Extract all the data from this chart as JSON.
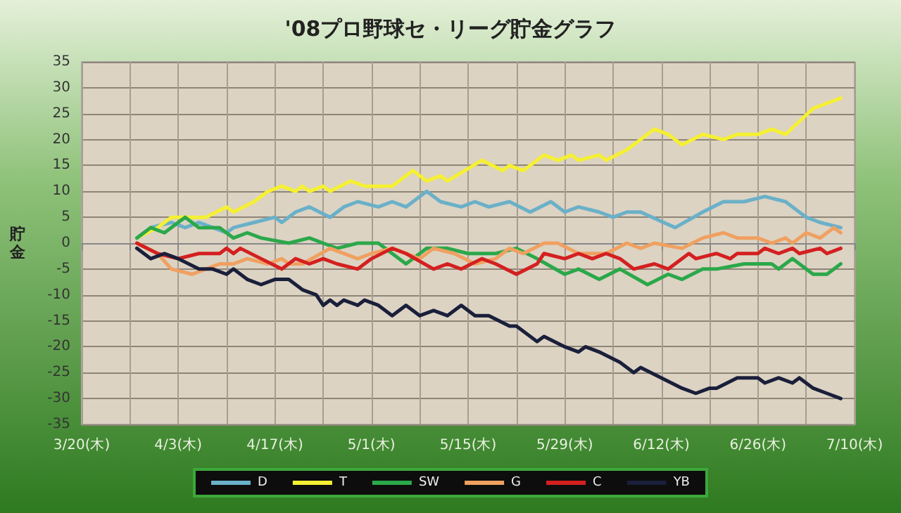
{
  "chart_data": {
    "type": "line",
    "title": "'08プロ野球セ・リーグ貯金グラフ",
    "ylabel": "貯金",
    "xlim": [
      "--03-20",
      "--07-10"
    ],
    "xticks": [
      {
        "value": "--03-20",
        "label": "3/20(木)"
      },
      {
        "value": "--03-27",
        "label": null
      },
      {
        "value": "--04-03",
        "label": "4/3(木)"
      },
      {
        "value": "--04-10",
        "label": null
      },
      {
        "value": "--04-17",
        "label": "4/17(木)"
      },
      {
        "value": "--04-24",
        "label": null
      },
      {
        "value": "--05-01",
        "label": "5/1(木)"
      },
      {
        "value": "--05-08",
        "label": null
      },
      {
        "value": "--05-15",
        "label": "5/15(木)"
      },
      {
        "value": "--05-22",
        "label": null
      },
      {
        "value": "--05-29",
        "label": "5/29(木)"
      },
      {
        "value": "--06-05",
        "label": null
      },
      {
        "value": "--06-12",
        "label": "6/12(木)"
      },
      {
        "value": "--06-19",
        "label": null
      },
      {
        "value": "--06-26",
        "label": "6/26(木)"
      },
      {
        "value": "--07-03",
        "label": null
      },
      {
        "value": "--07-10",
        "label": "7/10(木)"
      }
    ],
    "ylim": [
      -35,
      35
    ],
    "yticks": [
      -35,
      -30,
      -25,
      -20,
      -15,
      -10,
      -5,
      0,
      5,
      10,
      15,
      20,
      25,
      30,
      35
    ],
    "grid": true,
    "legend": "bottom",
    "marker": "none",
    "line_style": "solid",
    "series": [
      {
        "name": "D",
        "color": "#6ab0c8",
        "x": [
          "--03-28",
          "--03-30",
          "--04-02",
          "--04-04",
          "--04-06",
          "--04-08",
          "--04-10",
          "--04-11",
          "--04-14",
          "--04-17",
          "--04-18",
          "--04-20",
          "--04-22",
          "--04-25",
          "--04-27",
          "--04-29",
          "--05-02",
          "--05-04",
          "--05-06",
          "--05-09",
          "--05-11",
          "--05-14",
          "--05-16",
          "--05-18",
          "--05-21",
          "--05-24",
          "--05-27",
          "--05-29",
          "--05-31",
          "--06-03",
          "--06-05",
          "--06-07",
          "--06-09",
          "--06-14",
          "--06-18",
          "--06-21",
          "--06-24",
          "--06-27",
          "--06-30",
          "--07-03",
          "--07-05",
          "--07-08"
        ],
        "values": [
          1,
          3,
          4,
          3,
          4,
          3,
          2,
          3,
          4,
          5,
          4,
          6,
          7,
          5,
          7,
          8,
          7,
          8,
          7,
          10,
          8,
          7,
          8,
          7,
          8,
          6,
          8,
          6,
          7,
          6,
          5,
          6,
          6,
          3,
          6,
          8,
          8,
          9,
          8,
          5,
          4,
          3
        ]
      },
      {
        "name": "T",
        "color": "#f5f032",
        "x": [
          "--03-28",
          "--03-31",
          "--04-02",
          "--04-05",
          "--04-07",
          "--04-10",
          "--04-11",
          "--04-14",
          "--04-16",
          "--04-18",
          "--04-20",
          "--04-21",
          "--04-22",
          "--04-24",
          "--04-25",
          "--04-28",
          "--04-30",
          "--05-02",
          "--05-04",
          "--05-07",
          "--05-09",
          "--05-11",
          "--05-12",
          "--05-17",
          "--05-20",
          "--05-21",
          "--05-23",
          "--05-26",
          "--05-28",
          "--05-30",
          "--05-31",
          "--06-03",
          "--06-04",
          "--06-07",
          "--06-11",
          "--06-13",
          "--06-15",
          "--06-18",
          "--06-21",
          "--06-23",
          "--06-26",
          "--06-28",
          "--06-30",
          "--07-04",
          "--07-06",
          "--07-08"
        ],
        "values": [
          1,
          3,
          5,
          5,
          5,
          7,
          6,
          8,
          10,
          11,
          10,
          11,
          10,
          11,
          10,
          12,
          11,
          11,
          11,
          14,
          12,
          13,
          12,
          16,
          14,
          15,
          14,
          17,
          16,
          17,
          16,
          17,
          16,
          18,
          22,
          21,
          19,
          21,
          20,
          21,
          21,
          22,
          21,
          26,
          27,
          28
        ]
      },
      {
        "name": "SW",
        "color": "#2ba84a",
        "x": [
          "--03-28",
          "--03-30",
          "--04-01",
          "--04-04",
          "--04-06",
          "--04-09",
          "--04-11",
          "--04-13",
          "--04-15",
          "--04-19",
          "--04-22",
          "--04-24",
          "--04-26",
          "--04-29",
          "--05-02",
          "--05-06",
          "--05-09",
          "--05-12",
          "--05-15",
          "--05-19",
          "--05-22",
          "--05-25",
          "--05-29",
          "--05-31",
          "--06-03",
          "--06-06",
          "--06-10",
          "--06-13",
          "--06-15",
          "--06-18",
          "--06-20",
          "--06-24",
          "--06-28",
          "--06-29",
          "--07-01",
          "--07-04",
          "--07-06",
          "--07-08"
        ],
        "values": [
          1,
          3,
          2,
          5,
          3,
          3,
          1,
          2,
          1,
          0,
          1,
          0,
          -1,
          0,
          0,
          -4,
          -1,
          -1,
          -2,
          -2,
          -1,
          -3,
          -6,
          -5,
          -7,
          -5,
          -8,
          -6,
          -7,
          -5,
          -5,
          -4,
          -4,
          -5,
          -3,
          -6,
          -6,
          -4
        ]
      },
      {
        "name": "G",
        "color": "#f0a060",
        "x": [
          "--03-28",
          "--03-31",
          "--04-02",
          "--04-05",
          "--04-07",
          "--04-09",
          "--04-11",
          "--04-13",
          "--04-16",
          "--04-18",
          "--04-19",
          "--04-21",
          "--04-25",
          "--04-29",
          "--05-01",
          "--05-04",
          "--05-08",
          "--05-10",
          "--05-13",
          "--05-16",
          "--05-19",
          "--05-21",
          "--05-23",
          "--05-26",
          "--05-28",
          "--05-31",
          "--06-04",
          "--06-07",
          "--06-09",
          "--06-11",
          "--06-15",
          "--06-18",
          "--06-21",
          "--06-23",
          "--06-26",
          "--06-28",
          "--06-30",
          "--07-01",
          "--07-03",
          "--07-05",
          "--07-07",
          "--07-08"
        ],
        "values": [
          0,
          -2,
          -5,
          -6,
          -5,
          -4,
          -4,
          -3,
          -4,
          -3,
          -4,
          -4,
          -1,
          -3,
          -2,
          -1,
          -3,
          -1,
          -2,
          -4,
          -3,
          -1,
          -2,
          0,
          0,
          -2,
          -2,
          0,
          -1,
          0,
          -1,
          1,
          2,
          1,
          1,
          0,
          1,
          0,
          2,
          1,
          3,
          2
        ]
      },
      {
        "name": "C",
        "color": "#d42020",
        "x": [
          "--03-28",
          "--03-31",
          "--04-03",
          "--04-06",
          "--04-09",
          "--04-10",
          "--04-11",
          "--04-12",
          "--04-15",
          "--04-18",
          "--04-20",
          "--04-22",
          "--04-24",
          "--04-26",
          "--04-29",
          "--05-01",
          "--05-04",
          "--05-06",
          "--05-10",
          "--05-12",
          "--05-14",
          "--05-17",
          "--05-19",
          "--05-22",
          "--05-25",
          "--05-26",
          "--05-29",
          "--05-31",
          "--06-02",
          "--06-04",
          "--06-06",
          "--06-08",
          "--06-11",
          "--06-13",
          "--06-16",
          "--06-17",
          "--06-20",
          "--06-22",
          "--06-23",
          "--06-26",
          "--06-27",
          "--06-29",
          "--07-01",
          "--07-02",
          "--07-05",
          "--07-06",
          "--07-08"
        ],
        "values": [
          0,
          -2,
          -3,
          -2,
          -2,
          -1,
          -2,
          -1,
          -3,
          -5,
          -3,
          -4,
          -3,
          -4,
          -5,
          -3,
          -1,
          -2,
          -5,
          -4,
          -5,
          -3,
          -4,
          -6,
          -4,
          -2,
          -3,
          -2,
          -3,
          -2,
          -3,
          -5,
          -4,
          -5,
          -2,
          -3,
          -2,
          -3,
          -2,
          -2,
          -1,
          -2,
          -1,
          -2,
          -1,
          -2,
          -1
        ]
      },
      {
        "name": "YB",
        "color": "#1a1f3a",
        "x": [
          "--03-28",
          "--03-30",
          "--04-01",
          "--04-03",
          "--04-06",
          "--04-08",
          "--04-10",
          "--04-11",
          "--04-13",
          "--04-15",
          "--04-17",
          "--04-19",
          "--04-21",
          "--04-23",
          "--04-24",
          "--04-25",
          "--04-26",
          "--04-27",
          "--04-29",
          "--04-30",
          "--05-02",
          "--05-04",
          "--05-06",
          "--05-08",
          "--05-10",
          "--05-12",
          "--05-14",
          "--05-16",
          "--05-18",
          "--05-21",
          "--05-22",
          "--05-25",
          "--05-26",
          "--05-29",
          "--05-31",
          "--06-01",
          "--06-03",
          "--06-06",
          "--06-08",
          "--06-09",
          "--06-12",
          "--06-15",
          "--06-17",
          "--06-19",
          "--06-20",
          "--06-23",
          "--06-26",
          "--06-27",
          "--06-29",
          "--07-01",
          "--07-02",
          "--07-04",
          "--07-06",
          "--07-08"
        ],
        "values": [
          -1,
          -3,
          -2,
          -3,
          -5,
          -5,
          -6,
          -5,
          -7,
          -8,
          -7,
          -7,
          -9,
          -10,
          -12,
          -11,
          -12,
          -11,
          -12,
          -11,
          -12,
          -14,
          -12,
          -14,
          -13,
          -14,
          -12,
          -14,
          -14,
          -16,
          -16,
          -19,
          -18,
          -20,
          -21,
          -20,
          -21,
          -23,
          -25,
          -24,
          -26,
          -28,
          -29,
          -28,
          -28,
          -26,
          -26,
          -27,
          -26,
          -27,
          -26,
          -28,
          -29,
          -30
        ]
      }
    ]
  }
}
